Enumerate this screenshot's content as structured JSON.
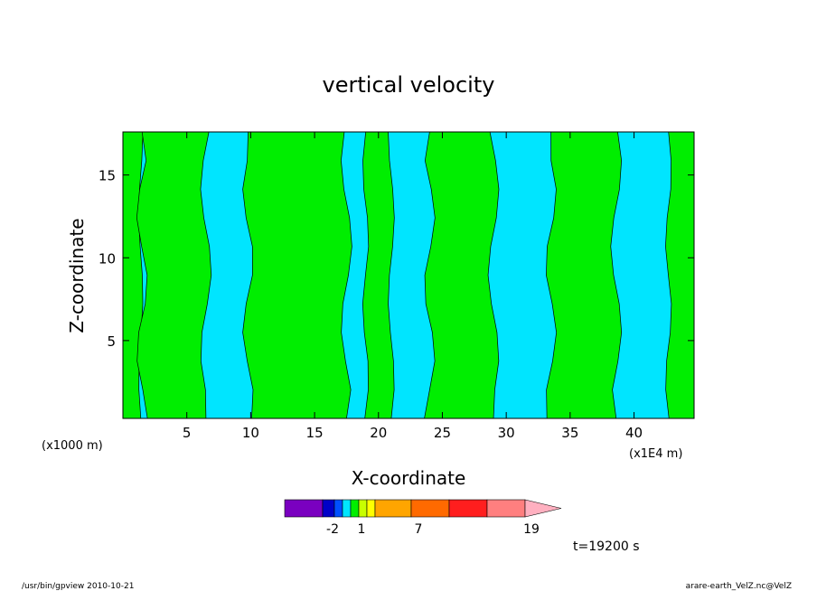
{
  "chart_data": {
    "type": "heatmap",
    "title": "vertical velocity",
    "xlabel": "X-coordinate",
    "ylabel": "Z-coordinate",
    "x_units_left": "(x1000 m)",
    "x_units_right": "(x1E4 m)",
    "x_ticks": [
      "5",
      "10",
      "15",
      "20",
      "25",
      "30",
      "35",
      "40"
    ],
    "y_ticks": [
      "5",
      "10",
      "15"
    ],
    "xlim": [
      0,
      44.7
    ],
    "ylim": [
      0.3,
      17.6
    ],
    "field_colors": {
      "negative": "#00e5ff",
      "positive": "#00ee00",
      "contour": "#000000"
    },
    "positive_regions_x": [
      [
        0,
        1.4
      ],
      [
        1.5,
        6.5
      ],
      [
        9.8,
        17.5
      ],
      [
        19,
        21
      ],
      [
        24,
        29
      ],
      [
        33.5,
        38.6
      ],
      [
        42.7,
        44.7
      ]
    ],
    "colorbar": {
      "colors": [
        "#7a00c0",
        "#0000c8",
        "#0050ff",
        "#00e5ff",
        "#00ee00",
        "#c8ff00",
        "#ffff00",
        "#ffa500",
        "#ff6a00",
        "#ff1e1e",
        "#ff7f7f",
        "#ffb0c0"
      ],
      "labels": [
        "-2",
        "1",
        "7",
        "19"
      ]
    },
    "time_label": "t=19200 s"
  },
  "footer": {
    "left": "/usr/bin/gpview   2010-10-21",
    "right": "arare-earth_VelZ.nc@VelZ"
  }
}
